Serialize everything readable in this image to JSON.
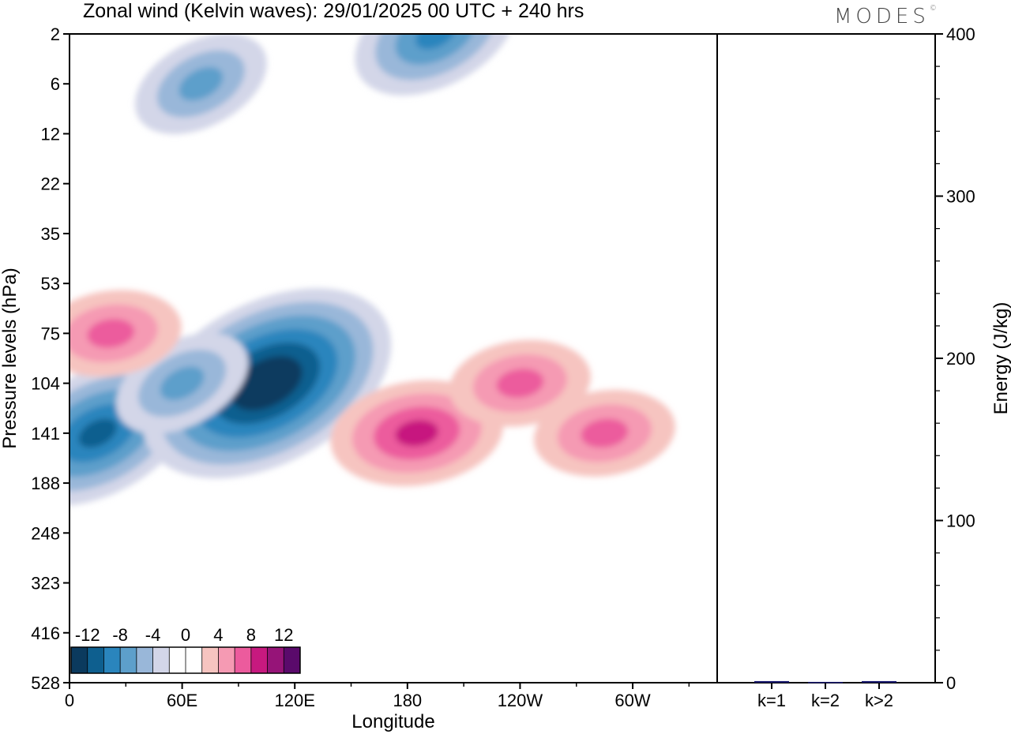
{
  "header": {
    "title": "Zonal wind (Kelvin waves):  29/01/2025  00 UTC  + 240 hrs",
    "logo": "MODES"
  },
  "chart_data": [
    {
      "type": "heatmap",
      "title": "Zonal wind (Kelvin waves):  29/01/2025  00 UTC  + 240 hrs",
      "xlabel": "Longitude",
      "ylabel": "Pressure levels (hPa)",
      "x_ticks": [
        "0",
        "60E",
        "120E",
        "180",
        "120W",
        "60W"
      ],
      "x_tick_degrees": [
        0,
        60,
        120,
        180,
        240,
        300
      ],
      "xlim": [
        0,
        345
      ],
      "y_ticks": [
        "2",
        "6",
        "12",
        "22",
        "35",
        "53",
        "75",
        "104",
        "141",
        "188",
        "248",
        "323",
        "416",
        "528"
      ],
      "y_axis": "pressure levels, top 2 hPa to bottom 528 hPa, reversed",
      "colorbar": {
        "labels": [
          "-12",
          "-8",
          "-4",
          "0",
          "4",
          "8",
          "12"
        ],
        "levels": [
          -14,
          -12,
          -10,
          -8,
          -6,
          -4,
          -2,
          2,
          4,
          6,
          8,
          10,
          12,
          14
        ],
        "colors": [
          "#0b3a5e",
          "#0e5f8f",
          "#2a85bd",
          "#5d9fcb",
          "#99b7d9",
          "#d3d6e8",
          "#ffffff",
          "#ffffff",
          "#f6c4c0",
          "#f59ab3",
          "#ec5b9d",
          "#c7197f",
          "#961478",
          "#5a0a6b"
        ]
      },
      "features": [
        {
          "sign": "negative",
          "lon": 15,
          "level": "141",
          "min": -10
        },
        {
          "sign": "negative",
          "lon": 105,
          "level": "104",
          "min": -14
        },
        {
          "sign": "negative",
          "lon": 60,
          "level": "104",
          "min": -6
        },
        {
          "sign": "negative",
          "lon": 70,
          "level": "6",
          "min": -6
        },
        {
          "sign": "negative",
          "lon": 195,
          "level": "2",
          "min": -8
        },
        {
          "sign": "positive",
          "lon": 185,
          "level": "141",
          "max": 8
        },
        {
          "sign": "positive",
          "lon": 240,
          "level": "104",
          "max": 6
        },
        {
          "sign": "positive",
          "lon": 285,
          "level": "141",
          "max": 6
        },
        {
          "sign": "positive",
          "lon": 22,
          "level": "75",
          "max": 6
        }
      ]
    },
    {
      "type": "bar",
      "categories": [
        "k=1",
        "k=2",
        "k>2"
      ],
      "values": [
        1.0,
        0.5,
        1.0
      ],
      "ylabel": "Energy (J/kg)",
      "ylim": [
        0,
        400
      ],
      "y_ticks": [
        0,
        100,
        200,
        300,
        400
      ],
      "bar_color": "#1a1a6e"
    }
  ]
}
